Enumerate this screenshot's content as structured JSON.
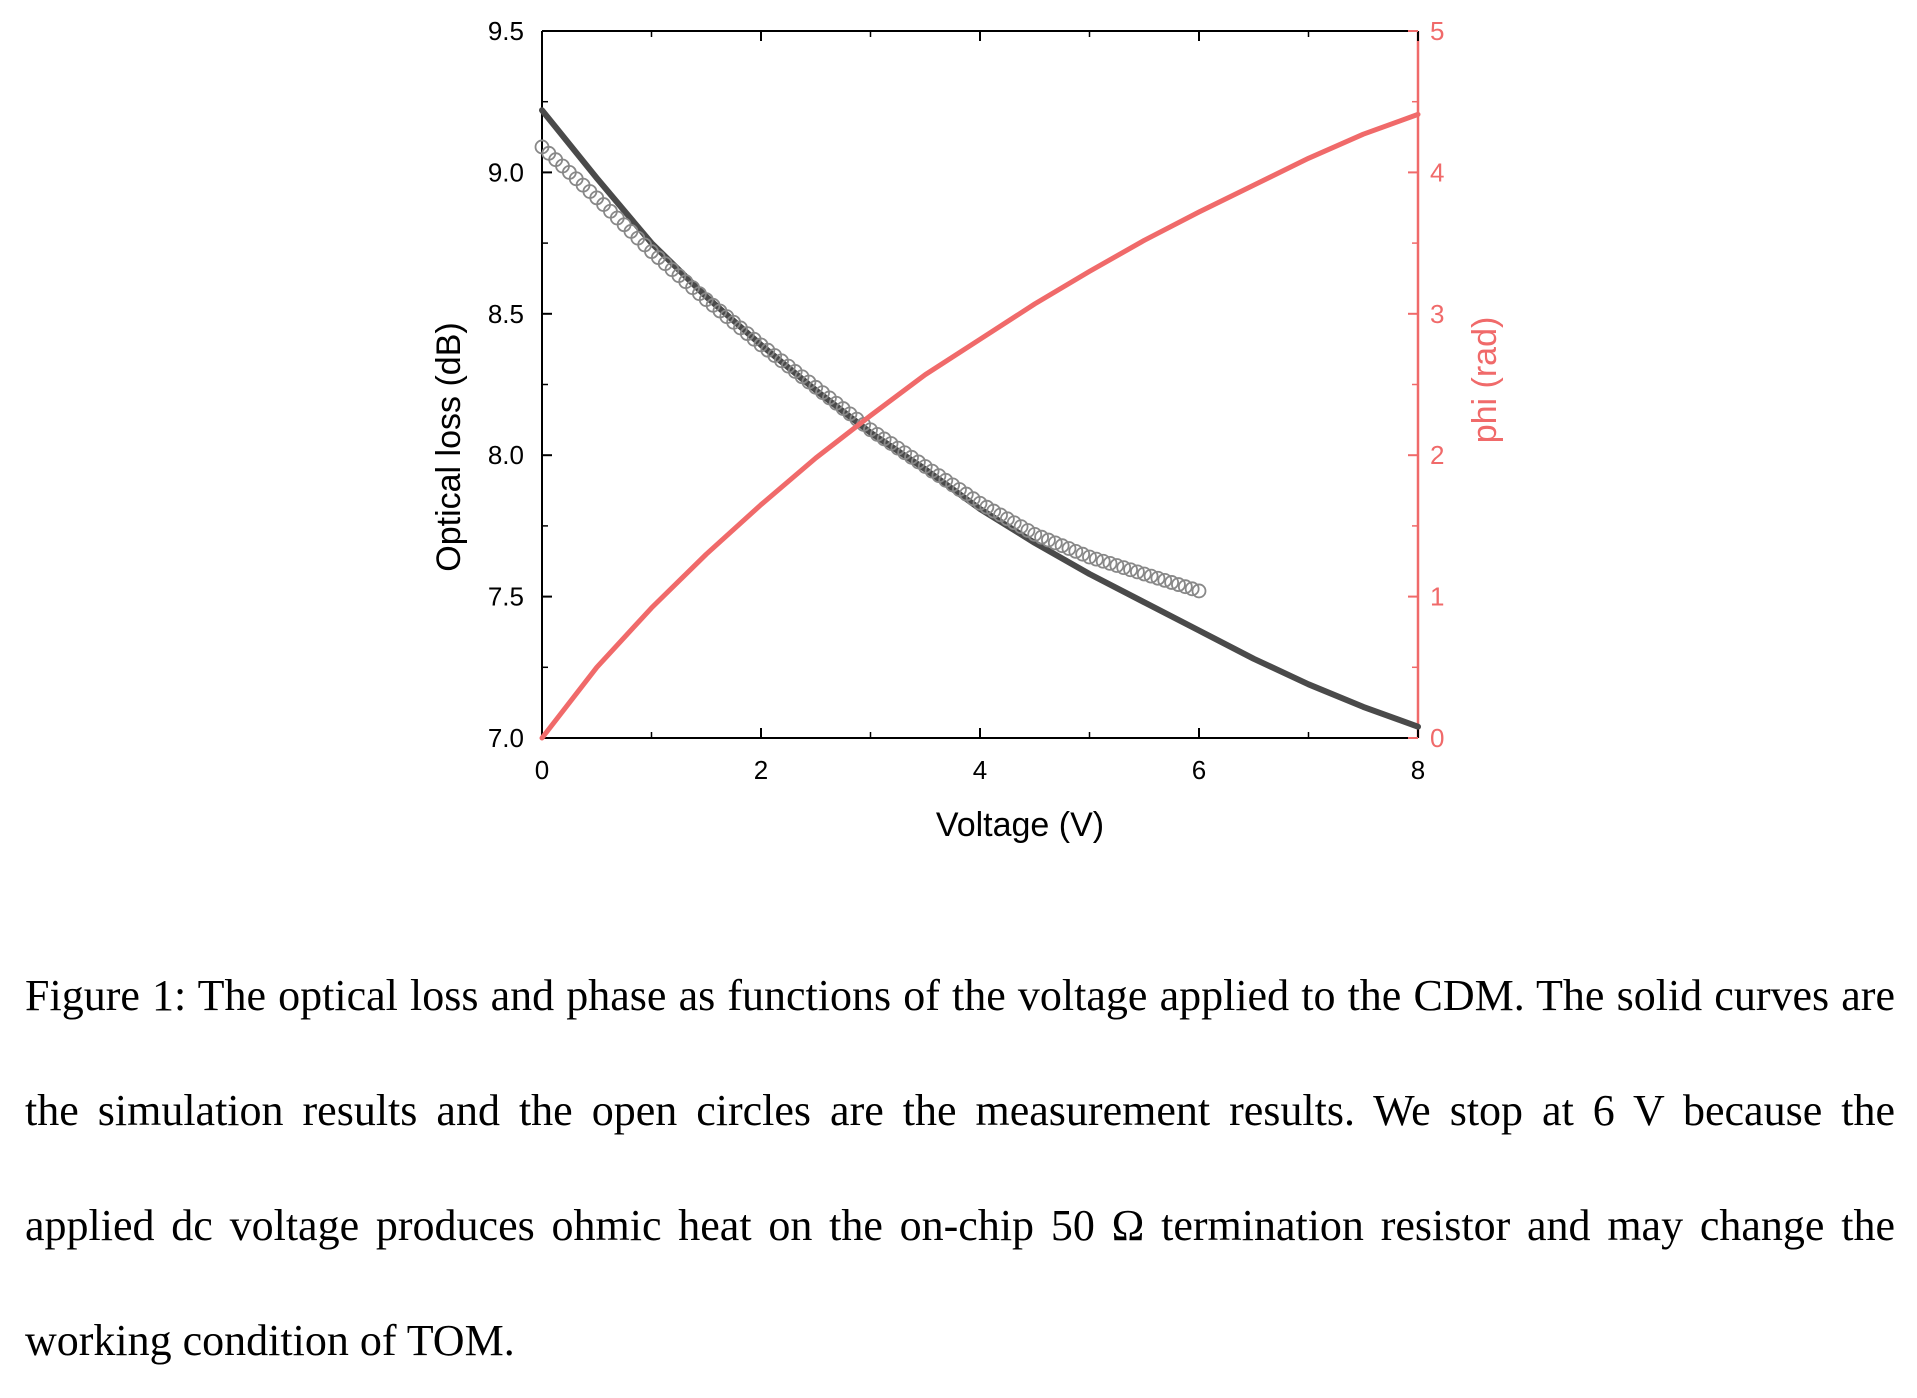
{
  "chart_data": {
    "type": "line",
    "title": "",
    "xlabel": "Voltage (V)",
    "ylabel": "Optical loss (dB)",
    "y2label": "phi (rad)",
    "xlim": [
      0,
      8
    ],
    "ylim": [
      7.0,
      9.5
    ],
    "y2lim": [
      0,
      5
    ],
    "x_ticks": [
      "0",
      "2",
      "4",
      "6",
      "8"
    ],
    "y_ticks": [
      "7.0",
      "7.5",
      "8.0",
      "8.5",
      "9.0",
      "9.5"
    ],
    "y2_ticks": [
      "0",
      "1",
      "2",
      "3",
      "4",
      "5"
    ],
    "grid": false,
    "legend": "none",
    "series": [
      {
        "style": "solid line",
        "axis": "left",
        "color": "#4a4a4a",
        "x": [
          0,
          0.5,
          1,
          1.5,
          2,
          2.5,
          3,
          3.5,
          4,
          4.5,
          5,
          5.5,
          6,
          6.5,
          7,
          7.5,
          8
        ],
        "values": [
          9.22,
          8.98,
          8.75,
          8.56,
          8.39,
          8.23,
          8.08,
          7.95,
          7.81,
          7.69,
          7.58,
          7.48,
          7.38,
          7.28,
          7.19,
          7.11,
          7.04
        ]
      },
      {
        "style": "open circles",
        "axis": "left",
        "color": "#888888",
        "x": [
          0,
          0.5,
          1,
          1.5,
          2,
          2.5,
          3,
          3.5,
          4,
          4.5,
          5,
          5.5,
          6
        ],
        "values": [
          9.09,
          8.91,
          8.72,
          8.55,
          8.39,
          8.24,
          8.09,
          7.96,
          7.83,
          7.72,
          7.64,
          7.58,
          7.52
        ]
      },
      {
        "style": "solid line",
        "axis": "right",
        "color": "#f06a6a",
        "x": [
          0,
          0.5,
          1,
          1.5,
          2,
          2.5,
          3,
          3.5,
          4,
          4.5,
          5,
          5.5,
          6,
          6.5,
          7,
          7.5,
          8
        ],
        "values": [
          0,
          0.5,
          0.92,
          1.3,
          1.65,
          1.98,
          2.28,
          2.57,
          2.82,
          3.07,
          3.3,
          3.52,
          3.72,
          3.91,
          4.1,
          4.27,
          4.41
        ]
      }
    ]
  },
  "colors": {
    "axis": "#000000",
    "left_series": "#4a4a4a",
    "measurement": "#888888",
    "right_axis": "#f06a6a"
  },
  "caption": "Figure 1: The optical loss and phase as functions of the voltage applied to the CDM. The solid curves are the simulation results and the open circles are the measurement results. We stop at 6 V because the applied dc voltage produces ohmic heat on the on-chip 50 Ω termination resistor and may change the working condition of TOM."
}
